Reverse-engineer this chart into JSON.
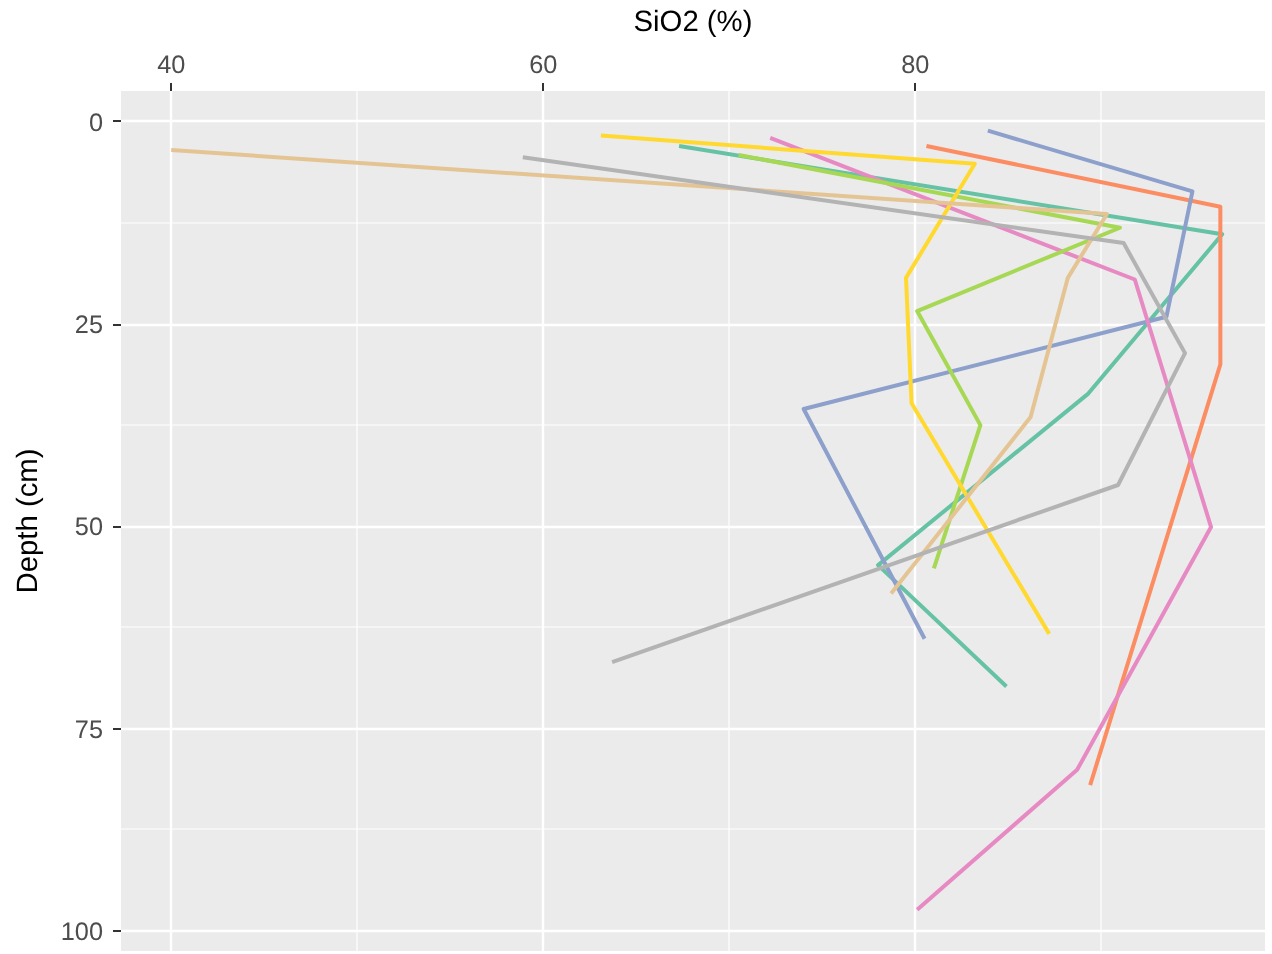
{
  "chart_data": {
    "type": "line",
    "xlabel": "SiO2 (%)",
    "ylabel": "Depth (cm)",
    "xlim": [
      37.3,
      98.8
    ],
    "ylim": [
      102.5,
      -3.8
    ],
    "xticks": [
      40,
      60,
      80
    ],
    "yticks": [
      0,
      25,
      50,
      75,
      100
    ],
    "grid": true,
    "marker": "none",
    "line_style": "solid",
    "series": [
      {
        "color": "#66c2a5",
        "x": [
          67.3,
          96.5,
          89.3,
          78.0,
          84.9
        ],
        "values": [
          3.0,
          13.9,
          33.6,
          54.8,
          69.8
        ]
      },
      {
        "color": "#fc8d62",
        "x": [
          80.6,
          96.4,
          96.4,
          89.4
        ],
        "values": [
          3.0,
          10.5,
          30.0,
          82.0
        ]
      },
      {
        "color": "#8da0cb",
        "x": [
          83.9,
          94.9,
          93.5,
          74.0,
          80.5
        ],
        "values": [
          1.1,
          8.6,
          24.1,
          35.5,
          63.9
        ]
      },
      {
        "color": "#e78ac3",
        "x": [
          72.2,
          91.8,
          95.9,
          88.7,
          80.1
        ],
        "values": [
          2.0,
          19.5,
          50.1,
          80.1,
          97.4
        ]
      },
      {
        "color": "#a6d854",
        "x": [
          70.5,
          91.0,
          80.1,
          83.5,
          81.0
        ],
        "values": [
          4.1,
          13.1,
          23.4,
          37.5,
          55.2
        ]
      },
      {
        "color": "#ffd92f",
        "x": [
          63.1,
          83.2,
          79.5,
          79.8,
          87.2
        ],
        "values": [
          1.7,
          5.2,
          19.3,
          34.8,
          63.3
        ]
      },
      {
        "color": "#e5c494",
        "x": [
          40.0,
          90.3,
          88.2,
          86.2,
          78.7
        ],
        "values": [
          3.5,
          11.4,
          19.3,
          36.5,
          58.3
        ]
      },
      {
        "color": "#b3b3b3",
        "x": [
          58.9,
          91.2,
          94.5,
          90.9,
          63.7
        ],
        "values": [
          4.4,
          15.0,
          28.6,
          44.9,
          66.8
        ]
      }
    ]
  }
}
